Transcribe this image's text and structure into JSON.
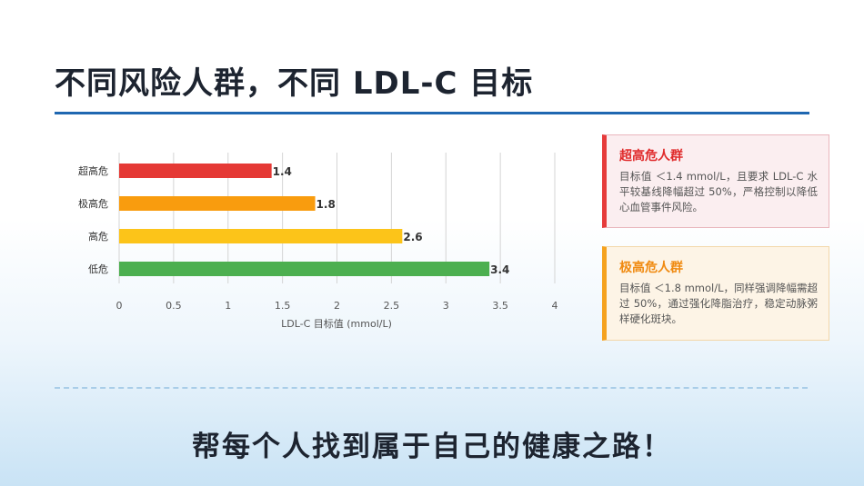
{
  "header": {
    "title": "不同风险人群，不同 LDL-C 目标"
  },
  "chart_data": {
    "type": "bar",
    "orientation": "horizontal",
    "categories": [
      "超高危",
      "极高危",
      "高危",
      "低危"
    ],
    "values": [
      1.4,
      1.8,
      2.6,
      3.4
    ],
    "value_labels": [
      "1.4",
      "1.8",
      "2.6",
      "3.4"
    ],
    "colors": [
      "#e53935",
      "#f99c0e",
      "#fcc419",
      "#4caf50"
    ],
    "xlabel": "LDL-C 目标值 (mmol/L)",
    "ylabel": "",
    "xlim": [
      0,
      4
    ],
    "xticks": [
      "0",
      "0.5",
      "1",
      "1.5",
      "2",
      "2.5",
      "3",
      "3.5",
      "4"
    ],
    "grid": "vertical"
  },
  "cards": [
    {
      "title": "超高危人群",
      "body": "目标值 ＜1.4 mmol/L，且要求 LDL-C 水平较基线降幅超过 50%，严格控制以降低心血管事件风险。"
    },
    {
      "title": "极高危人群",
      "body": "目标值 ＜1.8 mmol/L，同样强调降幅需超过 50%，通过强化降脂治疗，稳定动脉粥样硬化斑块。"
    }
  ],
  "footer": {
    "slogan": "帮每个人找到属于自己的健康之路！"
  }
}
